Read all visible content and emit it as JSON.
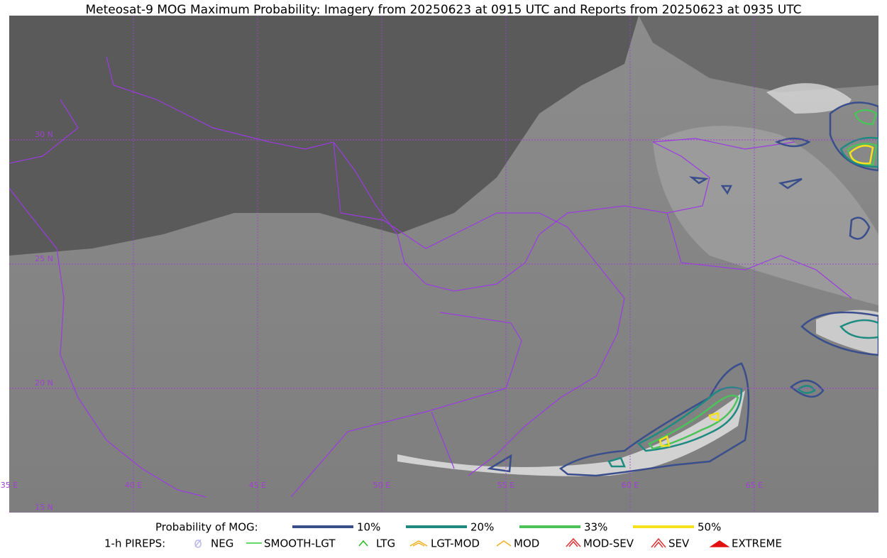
{
  "title": "Meteosat-9 MOG Maximum Probability: Imagery from 20250623 at 0915 UTC and Reports from 20250623 at 0935 UTC",
  "map": {
    "lat_labels": [
      "30 N",
      "25 N",
      "20 N",
      "15 N"
    ],
    "lon_labels": [
      "35 E",
      "40 E",
      "45 E",
      "50 E",
      "55 E",
      "60 E",
      "65 E"
    ]
  },
  "legend": {
    "mog": {
      "title": "Probability of MOG:",
      "items": [
        {
          "label": "10%",
          "color": "#3a4e8c"
        },
        {
          "label": "20%",
          "color": "#1f8a80"
        },
        {
          "label": "33%",
          "color": "#4cc35a"
        },
        {
          "label": "50%",
          "color": "#f5e11e"
        }
      ]
    },
    "pireps": {
      "title": "1-h PIREPS:",
      "items": [
        {
          "label": "NEG",
          "color": "#b8b8f0"
        },
        {
          "label": "SMOOTH-LGT",
          "color": "#33cc33"
        },
        {
          "label": "LTG",
          "color": "#22bb22"
        },
        {
          "label": "LGT-MOD",
          "color": "#f0b020"
        },
        {
          "label": "MOD",
          "color": "#f0b020"
        },
        {
          "label": "MOD-SEV",
          "color": "#e03030"
        },
        {
          "label": "SEV",
          "color": "#e03030"
        },
        {
          "label": "EXTREME",
          "color": "#e01010"
        }
      ]
    }
  }
}
